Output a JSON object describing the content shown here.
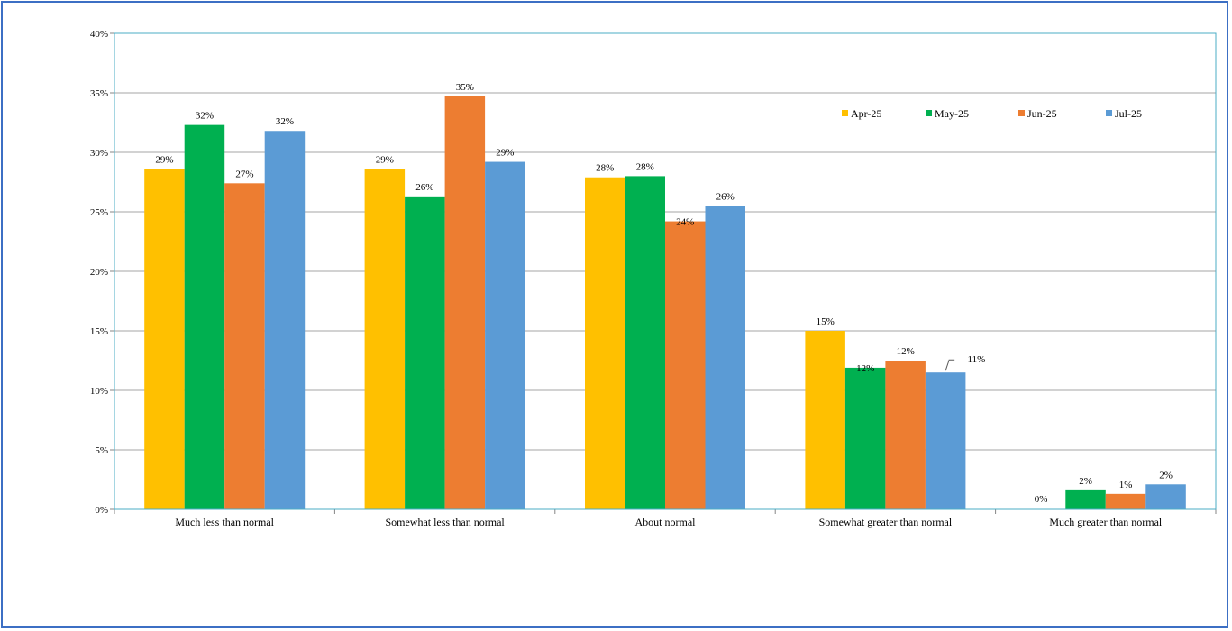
{
  "chart_data": {
    "type": "bar",
    "title": "",
    "xlabel": "",
    "ylabel": "",
    "categories": [
      "Much less than normal",
      "Somewhat less than normal",
      "About normal",
      "Somewhat greater than normal",
      "Much greater than normal"
    ],
    "series": [
      {
        "name": "Apr-25",
        "color": "#ffc000",
        "values": [
          28.6,
          28.6,
          27.9,
          15.0,
          0.0
        ],
        "labels": [
          "29%",
          "29%",
          "28%",
          "15%",
          "0%"
        ]
      },
      {
        "name": "May-25",
        "color": "#00b050",
        "values": [
          32.3,
          26.3,
          28.0,
          11.9,
          1.6
        ],
        "labels": [
          "32%",
          "26%",
          "28%",
          "12%",
          "2%"
        ]
      },
      {
        "name": "Jun-25",
        "color": "#ed7d31",
        "values": [
          27.4,
          34.7,
          24.2,
          12.5,
          1.3
        ],
        "labels": [
          "27%",
          "35%",
          "24%",
          "12%",
          "1%"
        ]
      },
      {
        "name": "Jul-25",
        "color": "#5b9bd5",
        "values": [
          31.8,
          29.2,
          25.5,
          11.5,
          2.1
        ],
        "labels": [
          "32%",
          "29%",
          "26%",
          "11%",
          "2%"
        ]
      }
    ],
    "ylim": [
      0,
      40
    ],
    "yticks": [
      0,
      5,
      10,
      15,
      20,
      25,
      30,
      35,
      40
    ],
    "ytick_labels": [
      "0%",
      "5%",
      "10%",
      "15%",
      "20%",
      "25%",
      "30%",
      "35%",
      "40%"
    ],
    "grid": true,
    "legend_position": "top-right",
    "plot_border_color": "#4bacc6",
    "frame_color": "#3c6fc4"
  }
}
